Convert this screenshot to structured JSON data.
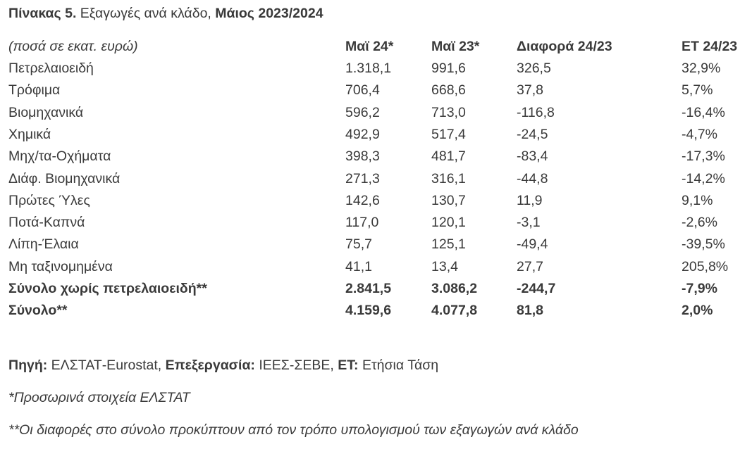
{
  "header": {
    "label": "Πίνακας 5.",
    "title": "Εξαγωγές ανά κλάδο,",
    "period": "Μάιος 2023/2024"
  },
  "table": {
    "columns": [
      "(ποσά σε εκατ. ευρώ)",
      "Μαϊ 24*",
      "Μαϊ 23*",
      "Διαφορά 24/23",
      "ΕΤ 24/23"
    ],
    "rows": [
      [
        "Πετρελαιοειδή",
        "1.318,1",
        "991,6",
        "326,5",
        "32,9%"
      ],
      [
        "Τρόφιμα",
        "706,4",
        "668,6",
        "37,8",
        "5,7%"
      ],
      [
        "Βιομηχανικά",
        "596,2",
        "713,0",
        "-116,8",
        "-16,4%"
      ],
      [
        "Χημικά",
        "492,9",
        "517,4",
        "-24,5",
        "-4,7%"
      ],
      [
        "Μηχ/τα-Οχήματα",
        "398,3",
        "481,7",
        "-83,4",
        "-17,3%"
      ],
      [
        "Διάφ. Βιομηχανικά",
        "271,3",
        "316,1",
        "-44,8",
        "-14,2%"
      ],
      [
        "Πρώτες Ύλες",
        "142,6",
        "130,7",
        "11,9",
        "9,1%"
      ],
      [
        "Ποτά-Καπνά",
        "117,0",
        "120,1",
        "-3,1",
        "-2,6%"
      ],
      [
        "Λίπη-Έλαια",
        "75,7",
        "125,1",
        "-49,4",
        "-39,5%"
      ],
      [
        "Μη ταξινομημένα",
        "41,1",
        "13,4",
        "27,7",
        "205,8%"
      ]
    ],
    "total_rows": [
      [
        "Σύνολο χωρίς πετρελαιοειδή**",
        "2.841,5",
        "3.086,2",
        "-244,7",
        "-7,9%"
      ],
      [
        "Σύνολο**",
        "4.159,6",
        "4.077,8",
        "81,8",
        "2,0%"
      ]
    ]
  },
  "source": [
    {
      "key": "Πηγή:",
      "text": "ΕΛΣΤΑΤ-Eurostat,"
    },
    {
      "key": "Επεξεργασία:",
      "text": "ΙΕΕΣ-ΣΕΒΕ,"
    },
    {
      "key": "ΕΤ:",
      "text": "Ετήσια Τάση"
    }
  ],
  "notes": [
    "*Προσωρινά στοιχεία ΕΛΣΤΑΤ",
    "**Οι διαφορές στο σύνολο προκύπτουν από τον τρόπο υπολογισμού των εξαγωγών ανά κλάδο"
  ]
}
